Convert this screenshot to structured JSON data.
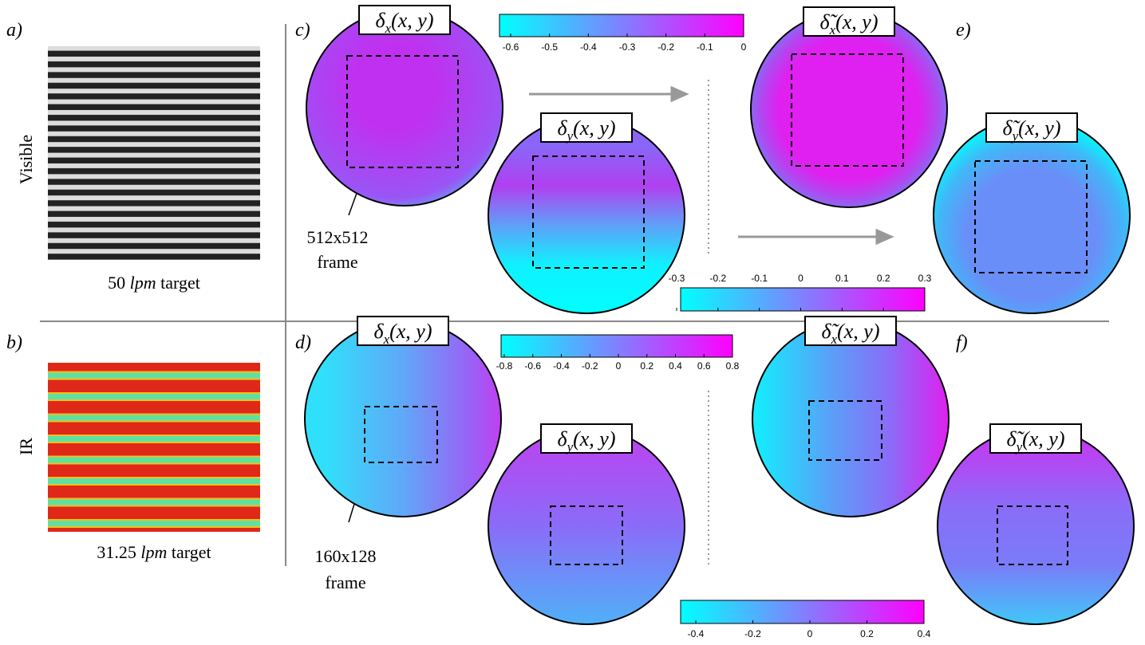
{
  "rows": [
    {
      "label": "Visible",
      "panel": "a)",
      "target": {
        "number": "50",
        "unit": "lpm",
        "word": "target"
      }
    },
    {
      "label": "IR",
      "panel": "b)",
      "target": {
        "number": "31.25",
        "unit": "lpm",
        "word": "target"
      }
    }
  ],
  "panels": [
    "c)",
    "d)",
    "e)",
    "f)"
  ],
  "frames": [
    {
      "size": "512x512",
      "word": "frame"
    },
    {
      "size": "160x128",
      "word": "frame"
    }
  ],
  "field_labels": [
    {
      "symbol": "δ",
      "sub": "x",
      "args": "(x, y)"
    },
    {
      "symbol": "δ",
      "sub": "y",
      "args": "(x, y)"
    },
    {
      "symbol": "δ̃",
      "sub": "x",
      "args": "(x, y)"
    },
    {
      "symbol": "δ̃",
      "sub": "y",
      "args": "(x, y)"
    },
    {
      "symbol": "δ",
      "sub": "x",
      "args": "(x, y)"
    },
    {
      "symbol": "δ",
      "sub": "y",
      "args": "(x, y)"
    },
    {
      "symbol": "δ̃",
      "sub": "x",
      "args": "(x, y)"
    },
    {
      "symbol": "δ̃",
      "sub": "y",
      "args": "(x, y)"
    }
  ],
  "colorbars": [
    [
      "-0.6",
      "-0.5",
      "-0.4",
      "-0.3",
      "-0.2",
      "-0.1",
      "0"
    ],
    [
      "-0.3",
      "-0.2",
      "-0.1",
      "0",
      "0.1",
      "0.2",
      "0.3"
    ],
    [
      "-0.8",
      "-0.6",
      "-0.4",
      "-0.2",
      "0",
      "0.2",
      "0.4",
      "0.6",
      "0.8"
    ],
    [
      "-0.4",
      "-0.2",
      "0",
      "0.2",
      "0.4"
    ]
  ]
}
